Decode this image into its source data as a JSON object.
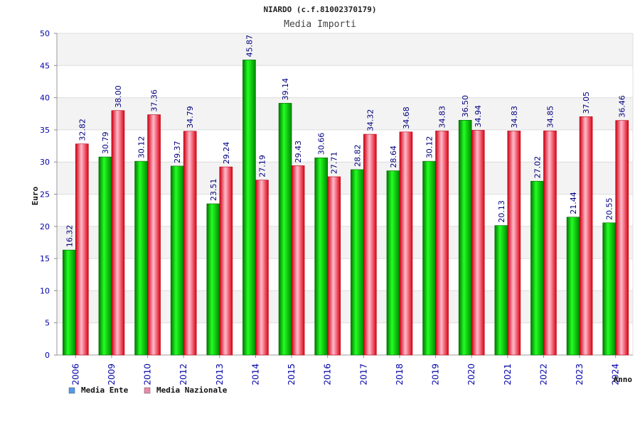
{
  "chart_data": {
    "type": "bar",
    "title": "NIARDO (c.f.81002370179)",
    "subtitle": "Media Importi",
    "xlabel": "Anno",
    "ylabel": "Euro",
    "ylim": [
      0,
      50
    ],
    "yticks": [
      "0",
      "5",
      "10",
      "15",
      "20",
      "25",
      "30",
      "35",
      "40",
      "45",
      "50"
    ],
    "grid": true,
    "legend_position": "bottom-left",
    "categories": [
      "2006",
      "2009",
      "2010",
      "2012",
      "2013",
      "2014",
      "2015",
      "2016",
      "2017",
      "2018",
      "2019",
      "2020",
      "2021",
      "2022",
      "2023",
      "2024"
    ],
    "series": [
      {
        "name": "Media Ente",
        "color": "#00bb00",
        "legend_color": "#5599ee",
        "values": [
          16.32,
          30.79,
          30.12,
          29.37,
          23.51,
          45.87,
          39.14,
          30.66,
          28.82,
          28.64,
          30.12,
          36.5,
          20.13,
          27.02,
          21.44,
          20.55
        ],
        "labels": [
          "16.32",
          "30.79",
          "30.12",
          "29.37",
          "23.51",
          "45.87",
          "39.14",
          "30.66",
          "28.82",
          "28.64",
          "30.12",
          "36.50",
          "20.13",
          "27.02",
          "21.44",
          "20.55"
        ]
      },
      {
        "name": "Media Nazionale",
        "color": "#ee1122",
        "legend_color": "#ee88aa",
        "values": [
          32.82,
          38.0,
          37.36,
          34.79,
          29.24,
          27.19,
          29.43,
          27.71,
          34.32,
          34.68,
          34.83,
          34.94,
          34.83,
          34.85,
          37.05,
          36.46
        ],
        "labels": [
          "32.82",
          "38.00",
          "37.36",
          "34.79",
          "29.24",
          "27.19",
          "29.43",
          "27.71",
          "34.32",
          "34.68",
          "34.83",
          "34.94",
          "34.83",
          "34.85",
          "37.05",
          "36.46"
        ]
      }
    ]
  }
}
